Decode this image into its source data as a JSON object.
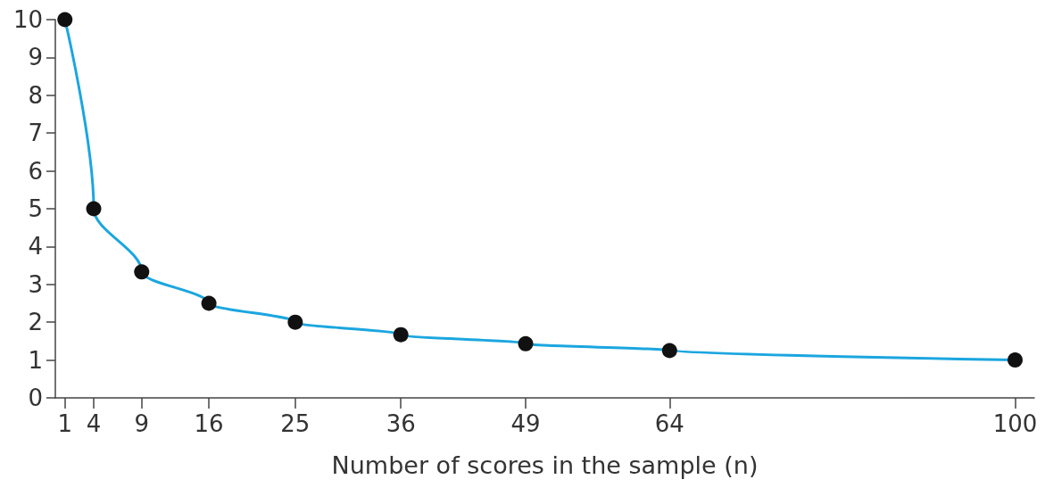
{
  "chart_data": {
    "type": "line",
    "xlabel": "Number of scores in the sample (n)",
    "x": [
      1,
      4,
      9,
      16,
      25,
      36,
      49,
      64,
      100
    ],
    "series": [
      {
        "color": "#1ba6df",
        "values": [
          10,
          5,
          3.33,
          2.5,
          2,
          1.67,
          1.43,
          1.25,
          1
        ]
      }
    ],
    "xlim": [
      0,
      102
    ],
    "xticks": [
      1,
      4,
      9,
      16,
      25,
      36,
      49,
      64,
      100
    ],
    "ylim": [
      0,
      10
    ],
    "yticks": [
      0,
      1,
      2,
      3,
      4,
      5,
      6,
      7,
      8,
      9,
      10
    ],
    "grid": false,
    "marker": "circle",
    "line_style": "solid"
  }
}
